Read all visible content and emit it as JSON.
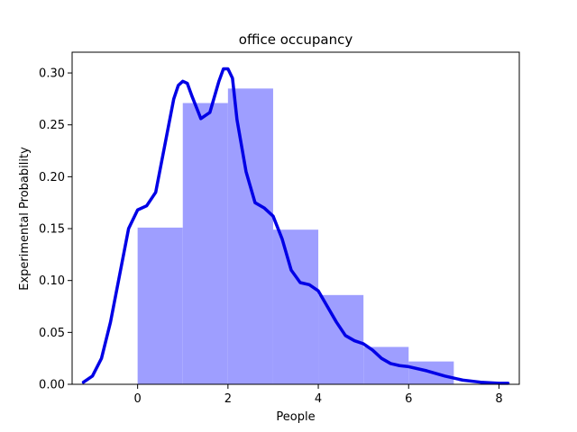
{
  "chart_data": {
    "type": "bar",
    "title": "office occupancy",
    "xlabel": "People",
    "ylabel": "Experimental Probability",
    "xlim": [
      -1.45,
      8.45
    ],
    "ylim": [
      0,
      0.32
    ],
    "xticks": [
      0,
      2,
      4,
      6,
      8
    ],
    "yticks": [
      0.0,
      0.05,
      0.1,
      0.15,
      0.2,
      0.25,
      0.3
    ],
    "ytick_labels": [
      "0.00",
      "0.05",
      "0.10",
      "0.15",
      "0.20",
      "0.25",
      "0.30"
    ],
    "grid": false,
    "legend": "none",
    "bins": [
      {
        "start": 0,
        "end": 1,
        "value": 0.151
      },
      {
        "start": 1,
        "end": 2,
        "value": 0.271
      },
      {
        "start": 2,
        "end": 3,
        "value": 0.285
      },
      {
        "start": 3,
        "end": 4,
        "value": 0.149
      },
      {
        "start": 4,
        "end": 5,
        "value": 0.086
      },
      {
        "start": 5,
        "end": 6,
        "value": 0.036
      },
      {
        "start": 6,
        "end": 7,
        "value": 0.022
      }
    ],
    "kde": {
      "x": [
        -1.2,
        -1.0,
        -0.8,
        -0.6,
        -0.4,
        -0.2,
        0.0,
        0.2,
        0.4,
        0.6,
        0.8,
        0.9,
        1.0,
        1.1,
        1.2,
        1.4,
        1.6,
        1.8,
        1.9,
        2.0,
        2.1,
        2.2,
        2.4,
        2.6,
        2.8,
        3.0,
        3.2,
        3.4,
        3.6,
        3.8,
        4.0,
        4.2,
        4.4,
        4.6,
        4.8,
        5.0,
        5.2,
        5.4,
        5.6,
        5.8,
        6.0,
        6.4,
        6.8,
        7.2,
        7.6,
        8.0,
        8.2
      ],
      "y": [
        0.002,
        0.008,
        0.025,
        0.06,
        0.105,
        0.15,
        0.168,
        0.172,
        0.185,
        0.23,
        0.275,
        0.288,
        0.292,
        0.29,
        0.278,
        0.256,
        0.262,
        0.292,
        0.304,
        0.304,
        0.295,
        0.255,
        0.205,
        0.175,
        0.17,
        0.162,
        0.14,
        0.11,
        0.098,
        0.096,
        0.09,
        0.075,
        0.06,
        0.047,
        0.042,
        0.039,
        0.033,
        0.025,
        0.02,
        0.018,
        0.017,
        0.013,
        0.008,
        0.004,
        0.002,
        0.001,
        0.001
      ]
    },
    "colors": {
      "bar": "#9e9eff",
      "line": "#0000e6",
      "axis": "#000000"
    }
  }
}
